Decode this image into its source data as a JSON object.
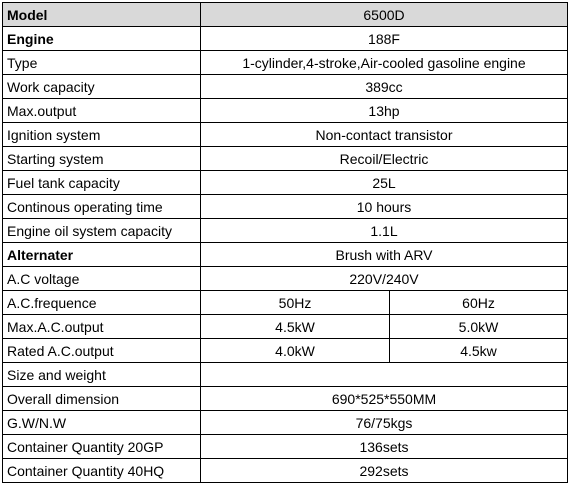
{
  "table": {
    "rows": [
      {
        "label": "Model",
        "cells": [
          "6500D"
        ]
      },
      {
        "label": "Engine",
        "cells": [
          "188F"
        ]
      },
      {
        "label": "Type",
        "cells": [
          "1-cylinder,4-stroke,Air-cooled gasoline engine"
        ]
      },
      {
        "label": "Work capacity",
        "cells": [
          "389cc"
        ]
      },
      {
        "label": "Max.output",
        "cells": [
          "13hp"
        ]
      },
      {
        "label": "Ignition system",
        "cells": [
          "Non-contact transistor"
        ]
      },
      {
        "label": "Starting system",
        "cells": [
          "Recoil/Electric"
        ]
      },
      {
        "label": "Fuel tank capacity",
        "cells": [
          "25L"
        ]
      },
      {
        "label": "Continous operating time",
        "cells": [
          "10 hours"
        ]
      },
      {
        "label": "Engine oil system capacity",
        "cells": [
          "1.1L"
        ]
      },
      {
        "label": "Alternater",
        "cells": [
          "Brush with ARV"
        ]
      },
      {
        "label": "A.C voltage",
        "cells": [
          "220V/240V"
        ]
      },
      {
        "label": "A.C.frequence",
        "cells": [
          "50Hz",
          "60Hz"
        ]
      },
      {
        "label": "Max.A.C.output",
        "cells": [
          "4.5kW",
          "5.0kW"
        ]
      },
      {
        "label": "Rated A.C.output",
        "cells": [
          "4.0kW",
          "4.5kw"
        ]
      },
      {
        "label": "Size and weight",
        "cells": []
      },
      {
        "label": "Overall dimension",
        "cells": [
          "690*525*550MM"
        ]
      },
      {
        "label": "G.W/N.W",
        "cells": [
          "76/75kgs"
        ]
      },
      {
        "label": "Container Quantity 20GP",
        "cells": [
          "136sets"
        ]
      },
      {
        "label": "Container Quantity 40HQ",
        "cells": [
          "292sets"
        ]
      }
    ]
  }
}
